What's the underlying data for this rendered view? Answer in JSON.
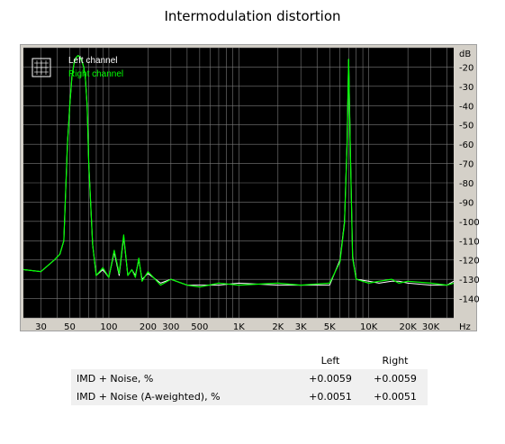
{
  "title": "Intermodulation distortion",
  "chart_data": {
    "type": "line",
    "title": "Intermodulation distortion",
    "xlabel": "Hz",
    "ylabel": "dB",
    "xscale": "log",
    "xlim": [
      22,
      45000
    ],
    "ylim": [
      -150,
      -10
    ],
    "x_ticks": [
      30,
      50,
      100,
      200,
      300,
      500,
      1000,
      2000,
      3000,
      5000,
      10000,
      20000,
      30000
    ],
    "x_tick_labels": [
      "30",
      "50",
      "100",
      "200",
      "300",
      "500",
      "1K",
      "2K",
      "3K",
      "5K",
      "10K",
      "20K",
      "30K"
    ],
    "y_ticks": [
      -20,
      -30,
      -40,
      -50,
      -60,
      -70,
      -80,
      -90,
      -100,
      -110,
      -120,
      -130,
      -140
    ],
    "y_tick_labels": [
      "-20",
      "-30",
      "-40",
      "-50",
      "-60",
      "-70",
      "-80",
      "-90",
      "-100",
      "-110",
      "-120",
      "-130",
      "-140"
    ],
    "grid": true,
    "legend_position": "top-left",
    "series": [
      {
        "name": "Left channel",
        "color": "#ffffff",
        "x": [
          22,
          30,
          38,
          42,
          45,
          48,
          50,
          52,
          54,
          56,
          58,
          60,
          62,
          64,
          66,
          68,
          70,
          75,
          80,
          90,
          100,
          110,
          120,
          130,
          140,
          150,
          160,
          170,
          180,
          200,
          250,
          300,
          400,
          500,
          700,
          1000,
          2000,
          3000,
          5000,
          6000,
          6500,
          6800,
          7000,
          7200,
          7500,
          8000,
          10000,
          12000,
          15000,
          17000,
          20000,
          30000,
          40000,
          45000
        ],
        "y": [
          -125,
          -126,
          -120,
          -117,
          -110,
          -60,
          -40,
          -25,
          -18,
          -15,
          -14,
          -15,
          -17,
          -20,
          -26,
          -40,
          -70,
          -112,
          -128,
          -125,
          -129,
          -116,
          -128,
          -108,
          -128,
          -125,
          -128,
          -120,
          -130,
          -127,
          -132,
          -130,
          -133,
          -133,
          -133,
          -132,
          -133,
          -133,
          -133,
          -120,
          -100,
          -60,
          -16,
          -60,
          -118,
          -130,
          -131,
          -132,
          -131,
          -131,
          -132,
          -133,
          -133,
          -131
        ]
      },
      {
        "name": "Right channel",
        "color": "#00ff00",
        "x": [
          22,
          30,
          38,
          42,
          45,
          48,
          50,
          52,
          54,
          56,
          58,
          60,
          62,
          64,
          66,
          68,
          70,
          75,
          80,
          90,
          100,
          110,
          120,
          130,
          140,
          150,
          160,
          170,
          180,
          200,
          250,
          300,
          400,
          500,
          700,
          1000,
          2000,
          3000,
          5000,
          6000,
          6500,
          6800,
          7000,
          7200,
          7500,
          8000,
          10000,
          12000,
          15000,
          17000,
          20000,
          30000,
          40000,
          45000
        ],
        "y": [
          -125,
          -126,
          -120,
          -117,
          -110,
          -60,
          -40,
          -25,
          -18,
          -15,
          -14,
          -15,
          -17,
          -20,
          -26,
          -40,
          -70,
          -112,
          -128,
          -124,
          -129,
          -115,
          -127,
          -107,
          -128,
          -125,
          -129,
          -119,
          -131,
          -126,
          -133,
          -130,
          -133,
          -134,
          -132,
          -133,
          -132,
          -133,
          -132,
          -121,
          -101,
          -61,
          -16,
          -61,
          -119,
          -130,
          -132,
          -131,
          -130,
          -132,
          -131,
          -132,
          -133,
          -132
        ]
      }
    ]
  },
  "table": {
    "headers": [
      "",
      "Left",
      "Right"
    ],
    "rows": [
      {
        "label": "IMD + Noise, %",
        "left": "+0.0059",
        "right": "+0.0059"
      },
      {
        "label": "IMD + Noise (A-weighted), %",
        "left": "+0.0051",
        "right": "+0.0051"
      }
    ]
  }
}
